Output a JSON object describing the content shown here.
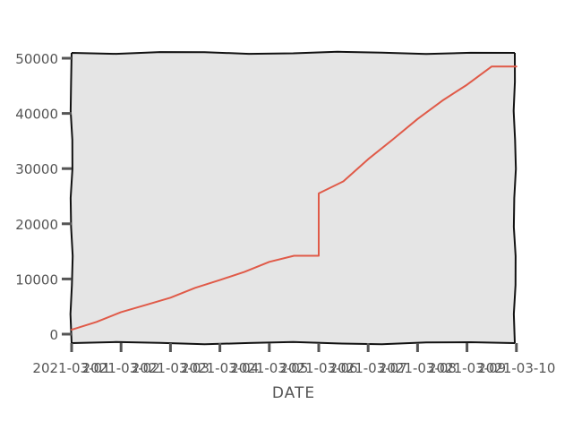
{
  "chart_data": {
    "type": "line",
    "title": "",
    "xlabel": "DATE",
    "ylabel": "",
    "ylim": [
      0,
      50000
    ],
    "y_ticks": [
      0,
      10000,
      20000,
      30000,
      40000,
      50000
    ],
    "y_tick_labels": [
      "0",
      "10000",
      "20000",
      "30000",
      "40000",
      "50000"
    ],
    "x_tick_labels": [
      "2021-03-01",
      "2021-03-02",
      "2021-03-03",
      "2021-03-04",
      "2021-03-05",
      "2021-03-06",
      "2021-03-07",
      "2021-03-08",
      "2021-03-09",
      "2021-03-10"
    ],
    "grid": false,
    "legend": "none",
    "colors": {
      "line": "#e05a48",
      "plot_background": "#e5e5e5",
      "axis": "#111111",
      "ticks": "#555555"
    },
    "series": [
      {
        "x": [
          "2021-03-01",
          "2021-03-01 12:00",
          "2021-03-02",
          "2021-03-02 12:00",
          "2021-03-03",
          "2021-03-03 12:00",
          "2021-03-04",
          "2021-03-04 12:00",
          "2021-03-05",
          "2021-03-05 12:00",
          "2021-03-06",
          "2021-03-06 00:00",
          "2021-03-06 12:00",
          "2021-03-07",
          "2021-03-07 12:00",
          "2021-03-08",
          "2021-03-08 12:00",
          "2021-03-09",
          "2021-03-09 12:00",
          "2021-03-10"
        ],
        "y": [
          800,
          2200,
          4000,
          5300,
          6600,
          8400,
          9800,
          11300,
          13100,
          14200,
          14200,
          25500,
          27700,
          31700,
          35300,
          39000,
          42300,
          45200,
          48500,
          48500
        ]
      }
    ]
  }
}
